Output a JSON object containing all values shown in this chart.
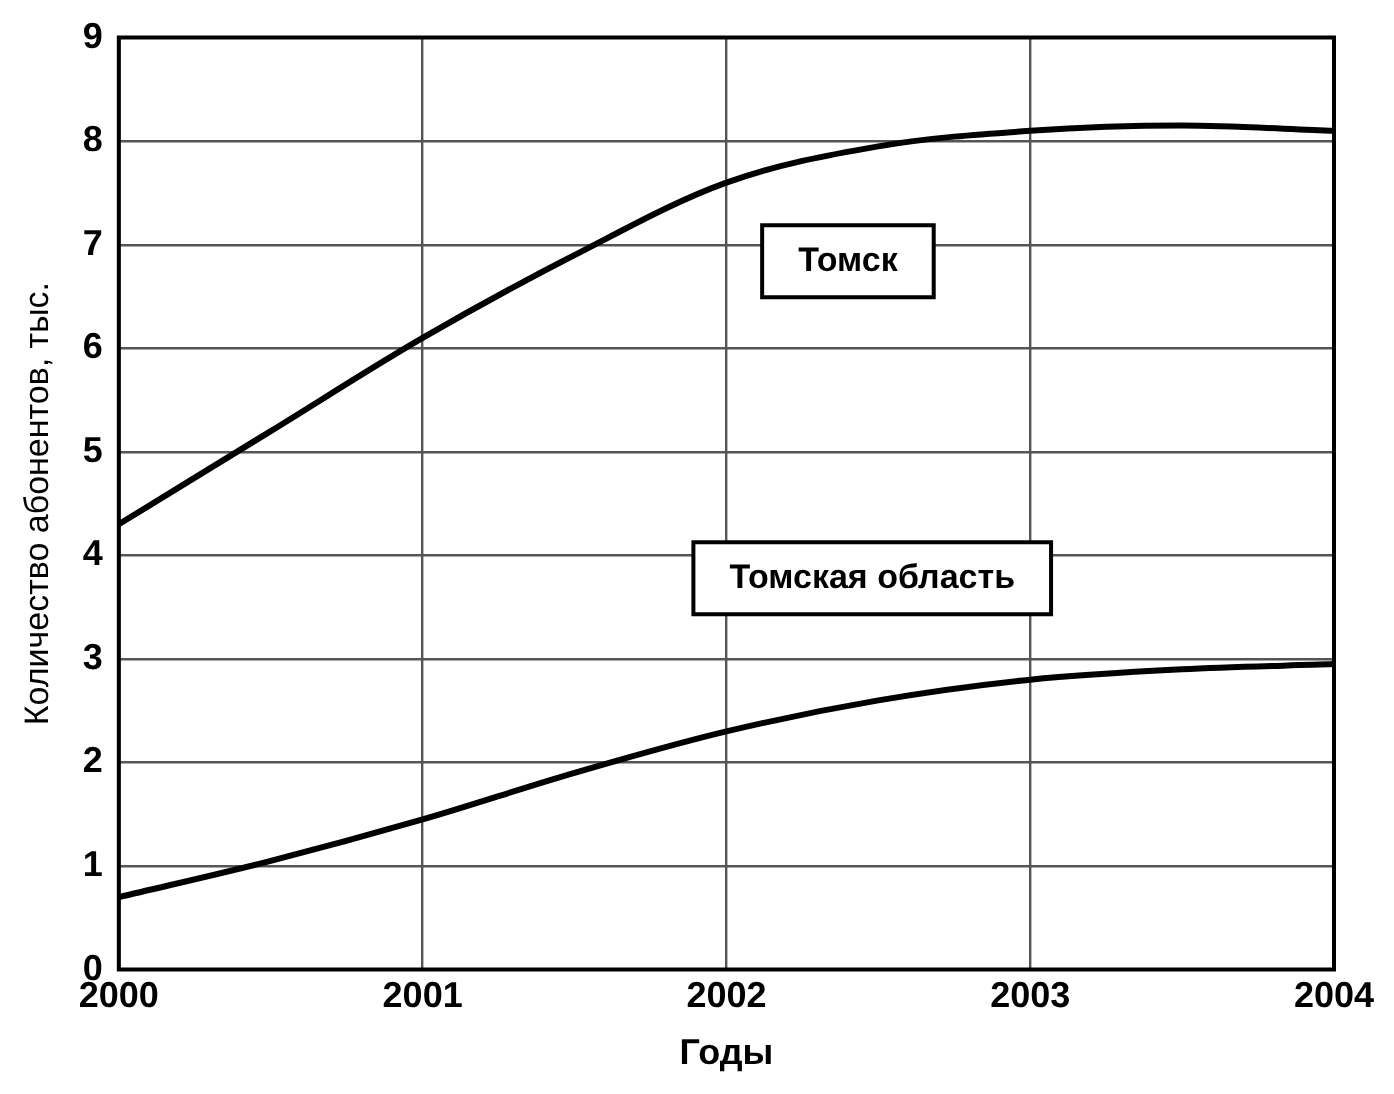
{
  "chart_data": {
    "type": "line",
    "xlabel": "Годы",
    "ylabel": "Количество абонентов, тыс.",
    "x": [
      2000,
      2000.5,
      2001,
      2001.5,
      2002,
      2002.5,
      2003,
      2003.5,
      2004
    ],
    "series": [
      {
        "name": "Томск",
        "color": "#000000",
        "values": [
          4.3,
          5.2,
          6.1,
          6.9,
          7.6,
          7.95,
          8.1,
          8.15,
          8.1
        ]
      },
      {
        "name": "Томская область",
        "color": "#000000",
        "values": [
          0.7,
          1.05,
          1.45,
          1.9,
          2.3,
          2.6,
          2.8,
          2.9,
          2.95
        ]
      }
    ],
    "xlim": [
      2000,
      2004
    ],
    "xticks": [
      2000,
      2001,
      2002,
      2003,
      2004
    ],
    "ylim": [
      0,
      9
    ],
    "yticks": [
      0,
      1,
      2,
      3,
      4,
      5,
      6,
      7,
      8,
      9
    ],
    "grid": true,
    "legend": false,
    "marker": "none",
    "line_style": "solid"
  }
}
